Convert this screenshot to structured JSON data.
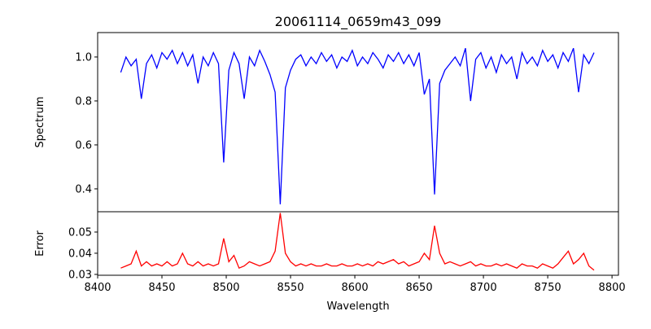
{
  "chart_data": [
    {
      "type": "line",
      "title": "20061114_0659m43_099",
      "xlabel": "",
      "ylabel": "Spectrum",
      "xlim": [
        8400,
        8805
      ],
      "ylim": [
        0.296,
        1.111
      ],
      "yticks": [
        0.4,
        0.6,
        0.8,
        1.0
      ],
      "ytick_labels": [
        "0.4",
        "0.6",
        "0.8",
        "1.0"
      ],
      "grid": false,
      "series": [
        {
          "name": "Spectrum",
          "color": "#0000ff",
          "x_start": 8418,
          "x_step": 4,
          "values": [
            0.93,
            1.0,
            0.96,
            0.99,
            0.81,
            0.97,
            1.01,
            0.95,
            1.02,
            0.99,
            1.03,
            0.97,
            1.02,
            0.96,
            1.01,
            0.88,
            1.0,
            0.96,
            1.02,
            0.97,
            0.52,
            0.94,
            1.02,
            0.97,
            0.81,
            1.0,
            0.96,
            1.03,
            0.98,
            0.92,
            0.84,
            0.33,
            0.86,
            0.94,
            0.99,
            1.01,
            0.96,
            1.0,
            0.97,
            1.02,
            0.98,
            1.01,
            0.95,
            1.0,
            0.98,
            1.03,
            0.96,
            1.0,
            0.97,
            1.02,
            0.99,
            0.95,
            1.01,
            0.98,
            1.02,
            0.97,
            1.01,
            0.96,
            1.02,
            0.83,
            0.9,
            0.375,
            0.88,
            0.94,
            0.97,
            1.0,
            0.96,
            1.04,
            0.8,
            0.99,
            1.02,
            0.95,
            1.0,
            0.93,
            1.01,
            0.97,
            1.0,
            0.9,
            1.02,
            0.97,
            1.0,
            0.96,
            1.03,
            0.98,
            1.01,
            0.95,
            1.02,
            0.98,
            1.04,
            0.84,
            1.01,
            0.97,
            1.02
          ]
        }
      ]
    },
    {
      "type": "line",
      "xlabel": "Wavelength",
      "ylabel": "Error",
      "xlim": [
        8400,
        8805
      ],
      "ylim": [
        0.0296,
        0.0596
      ],
      "xticks": [
        8400,
        8450,
        8500,
        8550,
        8600,
        8650,
        8700,
        8750,
        8800
      ],
      "xtick_labels": [
        "8400",
        "8450",
        "8500",
        "8550",
        "8600",
        "8650",
        "8700",
        "8750",
        "8800"
      ],
      "yticks": [
        0.03,
        0.04,
        0.05
      ],
      "ytick_labels": [
        "0.03",
        "0.04",
        "0.05"
      ],
      "grid": false,
      "series": [
        {
          "name": "Error",
          "color": "#ff0000",
          "x_start": 8418,
          "x_step": 4,
          "values": [
            0.033,
            0.034,
            0.035,
            0.041,
            0.034,
            0.036,
            0.034,
            0.035,
            0.034,
            0.036,
            0.034,
            0.035,
            0.04,
            0.035,
            0.034,
            0.036,
            0.034,
            0.035,
            0.034,
            0.035,
            0.047,
            0.036,
            0.039,
            0.033,
            0.034,
            0.036,
            0.035,
            0.034,
            0.035,
            0.036,
            0.041,
            0.059,
            0.04,
            0.036,
            0.034,
            0.035,
            0.034,
            0.035,
            0.034,
            0.034,
            0.035,
            0.034,
            0.034,
            0.035,
            0.034,
            0.034,
            0.035,
            0.034,
            0.035,
            0.034,
            0.036,
            0.035,
            0.036,
            0.037,
            0.035,
            0.036,
            0.034,
            0.035,
            0.036,
            0.04,
            0.037,
            0.053,
            0.04,
            0.035,
            0.036,
            0.035,
            0.034,
            0.035,
            0.036,
            0.034,
            0.035,
            0.034,
            0.034,
            0.035,
            0.034,
            0.035,
            0.034,
            0.033,
            0.035,
            0.034,
            0.034,
            0.033,
            0.035,
            0.034,
            0.033,
            0.035,
            0.038,
            0.041,
            0.035,
            0.037,
            0.04,
            0.034,
            0.032
          ]
        }
      ]
    }
  ]
}
